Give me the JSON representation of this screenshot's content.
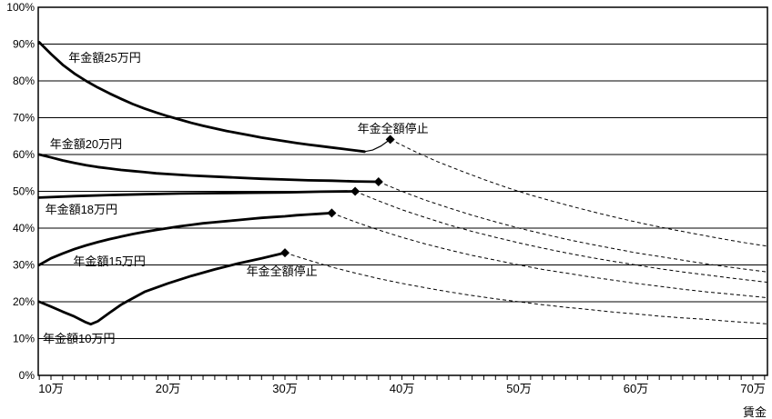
{
  "chart_data": {
    "type": "line",
    "title": "",
    "xlabel": "賃金",
    "x_tick_values": [
      10,
      20,
      30,
      40,
      50,
      60,
      70
    ],
    "x_tick_labels": [
      "10万",
      "20万",
      "30万",
      "40万",
      "50万",
      "60万",
      "70万"
    ],
    "x_minor_tick_step": 1,
    "x_range": [
      9,
      71.2
    ],
    "y_tick_values": [
      0,
      10,
      20,
      30,
      40,
      50,
      60,
      70,
      80,
      90,
      100
    ],
    "y_tick_labels": [
      "0%",
      "10%",
      "20%",
      "30%",
      "40%",
      "50%",
      "60%",
      "70%",
      "80%",
      "90%",
      "100%"
    ],
    "y_range": [
      0,
      100
    ],
    "grid": "horizontal-only",
    "legend_position": "none",
    "line_color": "#000000",
    "background_color": "#ffffff",
    "series": [
      {
        "name": "年金額25万円",
        "pension_man": 25,
        "label_text": "年金額25万円",
        "label_pos": [
          11.5,
          85.2
        ],
        "solid_points": [
          [
            9,
            90.5
          ],
          [
            10,
            87.3
          ],
          [
            11,
            84.4
          ],
          [
            12,
            82
          ],
          [
            13,
            80
          ],
          [
            14,
            78.2
          ],
          [
            15,
            76.6
          ],
          [
            16,
            75.1
          ],
          [
            17,
            73.7
          ],
          [
            18,
            72.5
          ],
          [
            19,
            71.4
          ],
          [
            20,
            70.4
          ],
          [
            21,
            69.5
          ],
          [
            22,
            68.6
          ],
          [
            23,
            67.8
          ],
          [
            24,
            67.1
          ],
          [
            25,
            66.4
          ],
          [
            26,
            65.8
          ],
          [
            27,
            65.2
          ],
          [
            28,
            64.6
          ],
          [
            29,
            64.1
          ],
          [
            30,
            63.6
          ],
          [
            31,
            63.1
          ],
          [
            32,
            62.7
          ],
          [
            33,
            62.3
          ],
          [
            34,
            61.9
          ],
          [
            35,
            61.5
          ],
          [
            36,
            61.1
          ],
          [
            36.8,
            60.8
          ]
        ],
        "thin_points": [
          [
            36.8,
            60.8
          ],
          [
            37.5,
            61.2
          ],
          [
            38.2,
            62.3
          ],
          [
            39,
            64.1
          ]
        ],
        "marker": [
          39,
          64.1
        ],
        "dashed_points": [
          [
            39,
            64.1
          ],
          [
            41,
            61
          ],
          [
            43,
            58.1
          ],
          [
            45,
            55.6
          ],
          [
            47,
            53.2
          ],
          [
            49,
            51
          ],
          [
            51,
            49
          ],
          [
            53,
            47.2
          ],
          [
            55,
            45.5
          ],
          [
            57,
            43.9
          ],
          [
            59,
            42.4
          ],
          [
            61,
            41
          ],
          [
            63,
            39.7
          ],
          [
            65,
            38.5
          ],
          [
            67,
            37.3
          ],
          [
            69,
            36.2
          ],
          [
            71.2,
            35.1
          ]
        ]
      },
      {
        "name": "年金額20万円",
        "pension_man": 20,
        "label_text": "年金額20万円",
        "label_pos": [
          9.9,
          61.7
        ],
        "solid_points": [
          [
            9,
            60
          ],
          [
            10,
            59.2
          ],
          [
            11,
            58.4
          ],
          [
            12,
            57.7
          ],
          [
            13,
            57.1
          ],
          [
            14,
            56.6
          ],
          [
            15,
            56.2
          ],
          [
            16,
            55.8
          ],
          [
            17,
            55.5
          ],
          [
            18,
            55.2
          ],
          [
            19,
            54.9
          ],
          [
            20,
            54.7
          ],
          [
            22,
            54.3
          ],
          [
            24,
            54
          ],
          [
            26,
            53.7
          ],
          [
            28,
            53.4
          ],
          [
            30,
            53.2
          ],
          [
            32,
            53
          ],
          [
            34,
            52.9
          ],
          [
            36,
            52.7
          ],
          [
            38,
            52.6
          ]
        ],
        "thin_points": [],
        "marker": [
          38,
          52.6
        ],
        "dashed_points": [
          [
            38,
            52.6
          ],
          [
            40,
            50
          ],
          [
            42,
            47.6
          ],
          [
            44,
            45.5
          ],
          [
            46,
            43.5
          ],
          [
            48,
            41.7
          ],
          [
            50,
            40
          ],
          [
            52,
            38.5
          ],
          [
            54,
            37
          ],
          [
            56,
            35.7
          ],
          [
            58,
            34.5
          ],
          [
            60,
            33.3
          ],
          [
            62,
            32.3
          ],
          [
            64,
            31.3
          ],
          [
            66,
            30.3
          ],
          [
            68,
            29.4
          ],
          [
            71.2,
            28.1
          ]
        ]
      },
      {
        "name": "年金額18万円",
        "pension_man": 18,
        "label_text": "年金額18万円",
        "label_pos": [
          9.5,
          44.0
        ],
        "solid_points": [
          [
            9,
            48.3
          ],
          [
            12,
            48.7
          ],
          [
            15,
            49
          ],
          [
            18,
            49.2
          ],
          [
            21,
            49.4
          ],
          [
            24,
            49.5
          ],
          [
            27,
            49.6
          ],
          [
            30,
            49.7
          ],
          [
            33,
            49.9
          ],
          [
            36,
            50
          ]
        ],
        "thin_points": [],
        "marker": [
          36,
          50
        ],
        "dashed_points": [
          [
            36,
            50
          ],
          [
            38,
            47.4
          ],
          [
            40,
            45
          ],
          [
            42,
            42.9
          ],
          [
            44,
            40.9
          ],
          [
            46,
            39.1
          ],
          [
            48,
            37.5
          ],
          [
            50,
            36
          ],
          [
            52,
            34.6
          ],
          [
            54,
            33.3
          ],
          [
            56,
            32.1
          ],
          [
            58,
            31
          ],
          [
            60,
            30
          ],
          [
            62,
            29
          ],
          [
            64,
            28.1
          ],
          [
            66,
            27.3
          ],
          [
            68,
            26.5
          ],
          [
            71.2,
            25.3
          ]
        ]
      },
      {
        "name": "年金額15万円",
        "pension_man": 15,
        "label_text": "年金額15万円",
        "label_pos": [
          11.9,
          29.9
        ],
        "solid_points": [
          [
            9,
            30
          ],
          [
            10,
            31.8
          ],
          [
            11,
            33.1
          ],
          [
            12,
            34.3
          ],
          [
            13,
            35.3
          ],
          [
            14,
            36.2
          ],
          [
            15,
            37
          ],
          [
            16,
            37.7
          ],
          [
            17,
            38.4
          ],
          [
            18,
            39
          ],
          [
            19,
            39.5
          ],
          [
            20,
            40
          ],
          [
            21,
            40.5
          ],
          [
            22,
            40.9
          ],
          [
            23,
            41.3
          ],
          [
            24,
            41.6
          ],
          [
            25,
            41.9
          ],
          [
            26,
            42.2
          ],
          [
            27,
            42.5
          ],
          [
            28,
            42.8
          ],
          [
            29,
            43
          ],
          [
            30,
            43.2
          ],
          [
            31,
            43.5
          ],
          [
            32,
            43.7
          ],
          [
            33,
            43.9
          ],
          [
            34,
            44.1
          ]
        ],
        "thin_points": [],
        "marker": [
          34,
          44.1
        ],
        "dashed_points": [
          [
            34,
            44.1
          ],
          [
            36,
            41.7
          ],
          [
            38,
            39.5
          ],
          [
            40,
            37.5
          ],
          [
            42,
            35.7
          ],
          [
            44,
            34.1
          ],
          [
            46,
            32.6
          ],
          [
            48,
            31.3
          ],
          [
            50,
            30
          ],
          [
            52,
            28.8
          ],
          [
            54,
            27.8
          ],
          [
            56,
            26.8
          ],
          [
            58,
            25.9
          ],
          [
            60,
            25
          ],
          [
            62,
            24.2
          ],
          [
            64,
            23.4
          ],
          [
            66,
            22.7
          ],
          [
            68,
            22.1
          ],
          [
            71.2,
            21.1
          ]
        ]
      },
      {
        "name": "年金額10万円",
        "pension_man": 10,
        "label_text": "年金額10万円",
        "label_pos": [
          9.3,
          8.9
        ],
        "solid_points": [
          [
            9,
            20
          ],
          [
            10,
            18.7
          ],
          [
            11,
            17.3
          ],
          [
            12,
            16
          ],
          [
            13,
            14.4
          ],
          [
            13.4,
            13.9
          ],
          [
            14,
            14.7
          ],
          [
            15,
            17
          ],
          [
            16,
            19.2
          ],
          [
            16.5,
            20.1
          ],
          [
            18,
            22.7
          ],
          [
            20,
            25
          ],
          [
            22,
            27
          ],
          [
            24,
            28.8
          ],
          [
            26,
            30.4
          ],
          [
            28,
            31.8
          ],
          [
            30,
            33.3
          ]
        ],
        "thin_points": [],
        "marker": [
          30,
          33.3
        ],
        "dashed_points": [
          [
            30,
            33.3
          ],
          [
            32,
            31.3
          ],
          [
            34,
            29.4
          ],
          [
            36,
            27.8
          ],
          [
            38,
            26.3
          ],
          [
            40,
            25
          ],
          [
            42,
            23.8
          ],
          [
            44,
            22.7
          ],
          [
            46,
            21.7
          ],
          [
            48,
            20.8
          ],
          [
            50,
            20
          ],
          [
            52,
            19.2
          ],
          [
            54,
            18.5
          ],
          [
            56,
            17.9
          ],
          [
            58,
            17.2
          ],
          [
            60,
            16.7
          ],
          [
            62,
            16.1
          ],
          [
            64,
            15.6
          ],
          [
            66,
            15.2
          ],
          [
            68,
            14.7
          ],
          [
            71.2,
            14
          ]
        ]
      }
    ],
    "annotations": [
      {
        "text": "年金全額停止",
        "pos": [
          36.2,
          65.9
        ],
        "attached_to": "年金額25万円"
      },
      {
        "text": "年金全額停止",
        "pos": [
          26.7,
          27.2
        ],
        "attached_to": "年金額10万円"
      }
    ]
  }
}
